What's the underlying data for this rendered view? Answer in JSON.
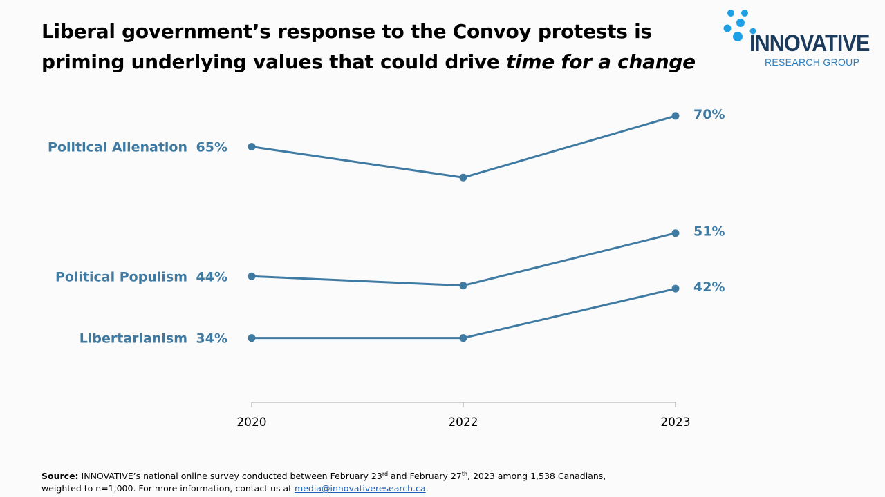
{
  "title": {
    "line1": "Liberal government’s response to the Convoy protests is",
    "line2_prefix": "priming underlying values that could drive ",
    "line2_italic": "time for a change"
  },
  "logo": {
    "name": "INNOVATIVE",
    "subtitle": "RESEARCH GROUP"
  },
  "colors": {
    "series": "#3f7aa3",
    "axis": "#a6a6a6",
    "logo_dots": "#1ea0e6",
    "logo_word": "#1b3a5c"
  },
  "chart_data": {
    "type": "line",
    "categories": [
      "2020",
      "2022",
      "2023"
    ],
    "series": [
      {
        "name": "Political Alienation",
        "values": [
          65,
          60,
          70
        ],
        "start_label": "65%",
        "end_label": "70%"
      },
      {
        "name": "Political Populism",
        "values": [
          44,
          42.5,
          51
        ],
        "start_label": "44%",
        "end_label": "51%"
      },
      {
        "name": "Libertarianism",
        "values": [
          34,
          34,
          42
        ],
        "start_label": "34%",
        "end_label": "42%"
      }
    ],
    "grid": false,
    "legend": "none",
    "ylim": [
      23,
      72
    ]
  },
  "source": {
    "label": "Source:",
    "text_a": "INNOVATIVE’s national online survey conducted between February 23",
    "sup1": "rd",
    "text_b": " and February 27",
    "sup2": "th",
    "text_c": ", 2023  among 1,538  Canadians,",
    "text_d": "weighted to n=1,000. For more information, contact us at ",
    "email": "media@innovativeresearch.ca",
    "end": "."
  }
}
